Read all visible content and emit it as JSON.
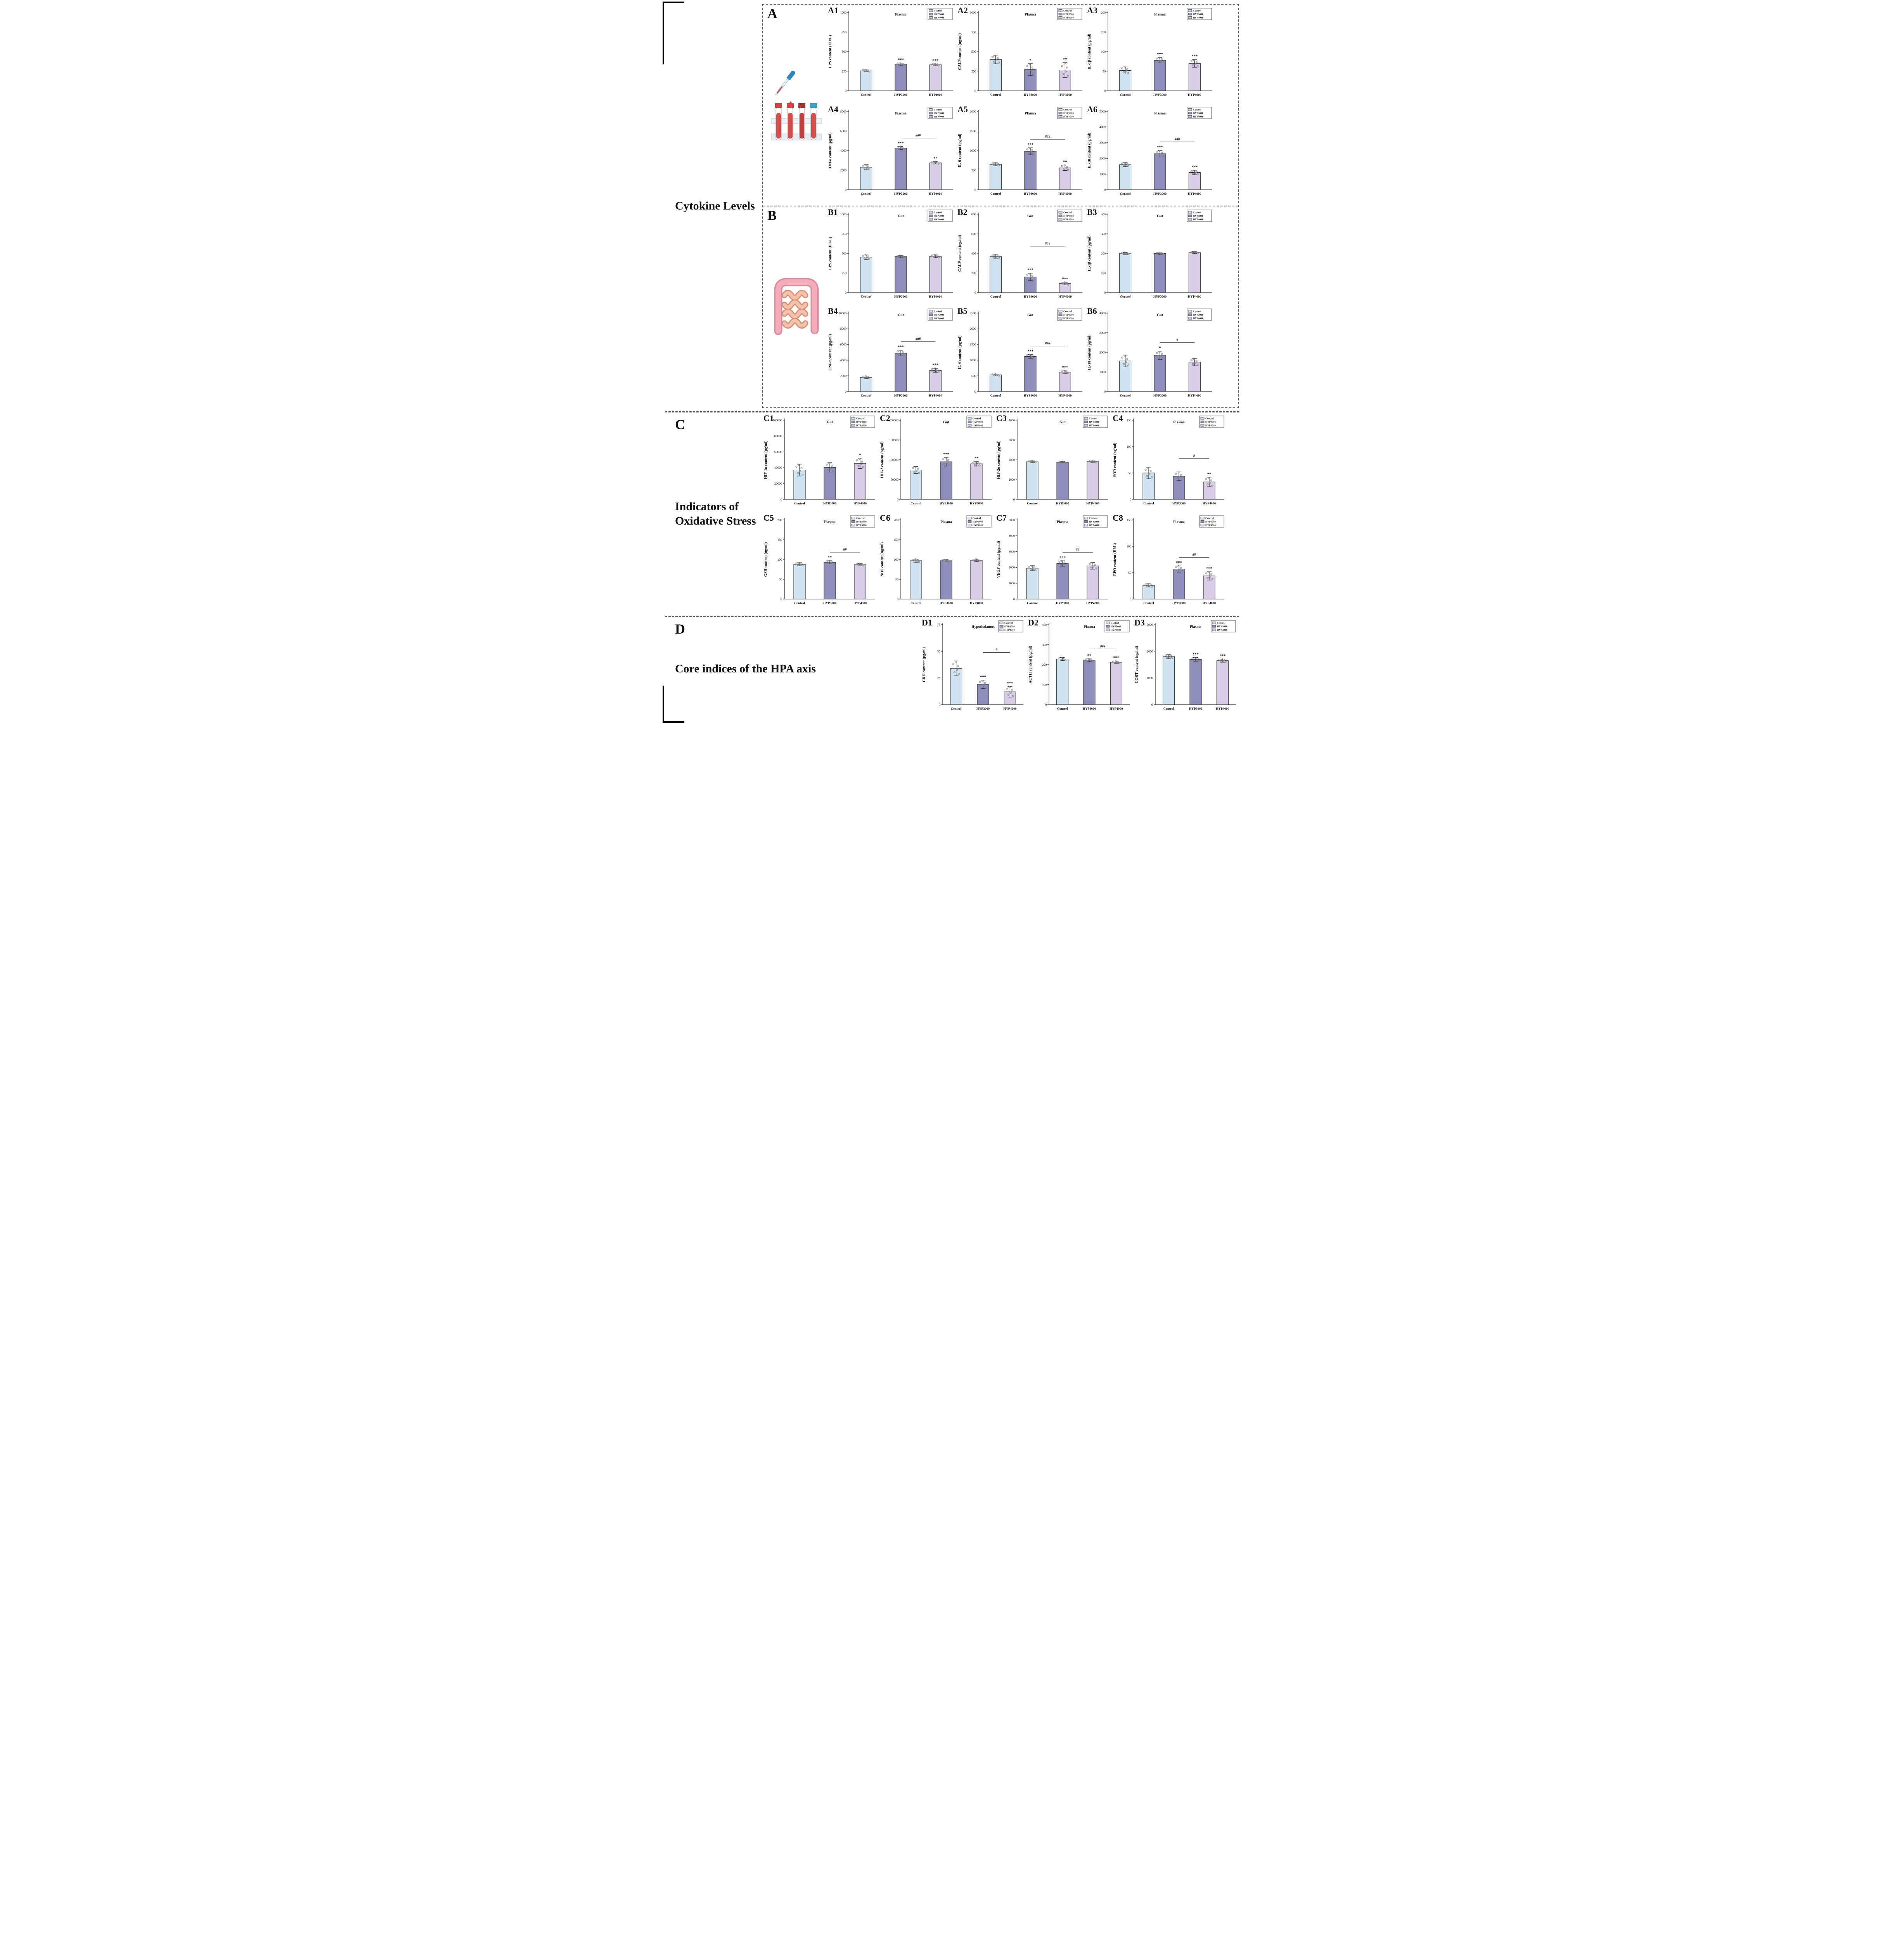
{
  "sections": {
    "cytokine_label": "Cytokine Levels",
    "A": {
      "letter": "A"
    },
    "B": {
      "letter": "B"
    },
    "C": {
      "letter": "C",
      "title1": "Indicators of",
      "title2": "Oxidative Stress"
    },
    "D": {
      "letter": "D",
      "title": "Core indices of the HPA axis"
    }
  },
  "legend": {
    "labels": [
      "Control",
      "HYP3000",
      "HYP4000"
    ]
  },
  "colors": {
    "series": [
      "#cfe3f1",
      "#8f8dbb",
      "#d9cce6"
    ],
    "bar_stroke": "#1a1a1a",
    "axis": "#111111",
    "scatter": "#9a9a9a"
  },
  "illustrations": {
    "A": "blood-test-tubes-illustration",
    "B": "intestine-illustration"
  },
  "chart_data": [
    {
      "panel": "A1",
      "section": "A",
      "type": "bar",
      "tissue": "Plasma",
      "ylabel": "LPS content (EU/L)",
      "ylim": [
        0,
        1000
      ],
      "yticks": [
        0,
        250,
        500,
        750,
        1000
      ],
      "categories": [
        "Control",
        "HYP3000",
        "HYP4000"
      ],
      "values": [
        255,
        340,
        332
      ],
      "errors": [
        12,
        14,
        12
      ],
      "sig": [
        "",
        "***",
        "***"
      ],
      "bracket": null
    },
    {
      "panel": "A2",
      "section": "A",
      "type": "bar",
      "tissue": "Plasma",
      "ylabel": "CALP content (ng/ml)",
      "ylim": [
        0,
        1000
      ],
      "yticks": [
        0,
        250,
        500,
        750,
        1000
      ],
      "categories": [
        "Control",
        "HYP3000",
        "HYP4000"
      ],
      "values": [
        400,
        272,
        265
      ],
      "errors": [
        55,
        75,
        95
      ],
      "sig": [
        "",
        "*",
        "**"
      ],
      "bracket": null
    },
    {
      "panel": "A3",
      "section": "A",
      "type": "bar",
      "tissue": "Plasma",
      "ylabel": "IL-1β content (pg/ml)",
      "ylim": [
        0,
        200
      ],
      "yticks": [
        0,
        50,
        100,
        150,
        200
      ],
      "categories": [
        "Control",
        "HYP3000",
        "HYP4000"
      ],
      "values": [
        52,
        78,
        70
      ],
      "errors": [
        9,
        7,
        10
      ],
      "sig": [
        "",
        "***",
        "***"
      ],
      "bracket": null
    },
    {
      "panel": "A4",
      "section": "A",
      "type": "bar",
      "tissue": "Plasma",
      "ylabel": "TNFα content (pg/ml)",
      "ylim": [
        0,
        8000
      ],
      "yticks": [
        0,
        2000,
        4000,
        6000,
        8000
      ],
      "categories": [
        "Control",
        "HYP3000",
        "HYP4000"
      ],
      "values": [
        2300,
        4250,
        2750
      ],
      "errors": [
        260,
        160,
        120
      ],
      "sig": [
        "",
        "***",
        "**"
      ],
      "bracket": {
        "from": 1,
        "to": 2,
        "label": "###"
      }
    },
    {
      "panel": "A5",
      "section": "A",
      "type": "bar",
      "tissue": "Plasma",
      "ylabel": "IL-6 content (pg/ml)",
      "ylim": [
        0,
        2000
      ],
      "yticks": [
        0,
        500,
        1000,
        1500,
        2000
      ],
      "categories": [
        "Control",
        "HYP3000",
        "HYP4000"
      ],
      "values": [
        650,
        980,
        560
      ],
      "errors": [
        40,
        90,
        70
      ],
      "sig": [
        "",
        "***",
        "**"
      ],
      "bracket": {
        "from": 1,
        "to": 2,
        "label": "###"
      }
    },
    {
      "panel": "A6",
      "section": "A",
      "type": "bar",
      "tissue": "Plasma",
      "ylabel": "IL-10 content (pg/ml)",
      "ylim": [
        0,
        5000
      ],
      "yticks": [
        0,
        1000,
        2000,
        3000,
        4000,
        5000
      ],
      "categories": [
        "Control",
        "HYP3000",
        "HYP4000"
      ],
      "values": [
        1600,
        2300,
        1100
      ],
      "errors": [
        130,
        210,
        140
      ],
      "sig": [
        "",
        "***",
        "***"
      ],
      "bracket": {
        "from": 1,
        "to": 2,
        "label": "###"
      }
    },
    {
      "panel": "B1",
      "section": "B",
      "type": "bar",
      "tissue": "Gut",
      "ylabel": "LPS content (EU/L)",
      "ylim": [
        0,
        1000
      ],
      "yticks": [
        0,
        250,
        500,
        750,
        1000
      ],
      "categories": [
        "Control",
        "HYP3000",
        "HYP4000"
      ],
      "values": [
        452,
        460,
        463
      ],
      "errors": [
        28,
        14,
        18
      ],
      "sig": [
        "",
        "",
        ""
      ],
      "bracket": null
    },
    {
      "panel": "B2",
      "section": "B",
      "type": "bar",
      "tissue": "Gut",
      "ylabel": "CALP content (ng/ml)",
      "ylim": [
        0,
        800
      ],
      "yticks": [
        0,
        200,
        400,
        600,
        800
      ],
      "categories": [
        "Control",
        "HYP3000",
        "HYP4000"
      ],
      "values": [
        368,
        160,
        92
      ],
      "errors": [
        18,
        38,
        14
      ],
      "sig": [
        "",
        "***",
        "***"
      ],
      "bracket": {
        "from": 1,
        "to": 2,
        "label": "###"
      }
    },
    {
      "panel": "B3",
      "section": "B",
      "type": "bar",
      "tissue": "Gut",
      "ylabel": "IL-1β content (pg/ml)",
      "ylim": [
        0,
        400
      ],
      "yticks": [
        0,
        100,
        200,
        300,
        400
      ],
      "categories": [
        "Control",
        "HYP3000",
        "HYP4000"
      ],
      "values": [
        200,
        199,
        204
      ],
      "errors": [
        5,
        4,
        5
      ],
      "sig": [
        "",
        "",
        ""
      ],
      "bracket": null
    },
    {
      "panel": "B4",
      "section": "B",
      "type": "bar",
      "tissue": "Gut",
      "ylabel": "TNFα content (pg/ml)",
      "ylim": [
        0,
        10000
      ],
      "yticks": [
        0,
        2000,
        4000,
        6000,
        8000,
        10000
      ],
      "categories": [
        "Control",
        "HYP3000",
        "HYP4000"
      ],
      "values": [
        1800,
        4900,
        2700
      ],
      "errors": [
        160,
        360,
        260
      ],
      "sig": [
        "",
        "***",
        "***"
      ],
      "bracket": {
        "from": 1,
        "to": 2,
        "label": "###"
      }
    },
    {
      "panel": "B5",
      "section": "B",
      "type": "bar",
      "tissue": "Gut",
      "ylabel": "IL-6 content (pg/ml)",
      "ylim": [
        0,
        2500
      ],
      "yticks": [
        0,
        500,
        1000,
        1500,
        2000,
        2500
      ],
      "categories": [
        "Control",
        "HYP3000",
        "HYP4000"
      ],
      "values": [
        530,
        1120,
        620
      ],
      "errors": [
        30,
        60,
        40
      ],
      "sig": [
        "",
        "***",
        "***"
      ],
      "bracket": {
        "from": 1,
        "to": 2,
        "label": "###"
      }
    },
    {
      "panel": "B6",
      "section": "B",
      "type": "bar",
      "tissue": "Gut",
      "ylabel": "IL-10 content (pg/ml)",
      "ylim": [
        0,
        4000
      ],
      "yticks": [
        0,
        1000,
        2000,
        3000,
        4000
      ],
      "categories": [
        "Control",
        "HYP3000",
        "HYP4000"
      ],
      "values": [
        1560,
        1850,
        1500
      ],
      "errors": [
        300,
        210,
        190
      ],
      "sig": [
        "",
        "*",
        ""
      ],
      "bracket": {
        "from": 1,
        "to": 2,
        "label": "#"
      }
    },
    {
      "panel": "C1",
      "section": "C",
      "type": "bar",
      "tissue": "Gut",
      "ylabel": "HIF-1α content (pg/ml)",
      "ylim": [
        0,
        100000
      ],
      "yticks": [
        0,
        20000,
        40000,
        60000,
        80000,
        100000
      ],
      "categories": [
        "Control",
        "HYP3000",
        "HYP4000"
      ],
      "values": [
        37000,
        40500,
        45500
      ],
      "errors": [
        7500,
        6000,
        6500
      ],
      "sig": [
        "",
        "",
        "*"
      ],
      "bracket": null
    },
    {
      "panel": "C2",
      "section": "C",
      "type": "bar",
      "tissue": "Gut",
      "ylabel": "HIF-2 content (pg/ml)",
      "ylim": [
        0,
        200000
      ],
      "yticks": [
        0,
        50000,
        100000,
        150000,
        200000
      ],
      "categories": [
        "Control",
        "HYP3000",
        "HYP4000"
      ],
      "values": [
        74000,
        95000,
        90000
      ],
      "errors": [
        9000,
        11000,
        6000
      ],
      "sig": [
        "",
        "***",
        "**"
      ],
      "bracket": null
    },
    {
      "panel": "C3",
      "section": "C",
      "type": "bar",
      "tissue": "Gut",
      "ylabel": "HIF-2α content (pg/ml)",
      "ylim": [
        0,
        4000
      ],
      "yticks": [
        0,
        1000,
        2000,
        3000,
        4000
      ],
      "categories": [
        "Control",
        "HYP3000",
        "HYP4000"
      ],
      "values": [
        1900,
        1880,
        1905
      ],
      "errors": [
        45,
        30,
        35
      ],
      "sig": [
        "",
        "",
        ""
      ],
      "bracket": null
    },
    {
      "panel": "C4",
      "section": "C",
      "type": "bar",
      "tissue": "Plasma",
      "ylabel": "SOD content (ng/ml)",
      "ylim": [
        0,
        150
      ],
      "yticks": [
        0,
        50,
        100,
        150
      ],
      "categories": [
        "Control",
        "HYP3000",
        "HYP4000"
      ],
      "values": [
        50,
        44,
        33
      ],
      "errors": [
        11,
        8,
        9
      ],
      "sig": [
        "",
        "",
        "**"
      ],
      "bracket": {
        "from": 1,
        "to": 2,
        "label": "#"
      }
    },
    {
      "panel": "C5",
      "section": "C",
      "type": "bar",
      "tissue": "Plasma",
      "ylabel": "GSH content (ng/ml)",
      "ylim": [
        0,
        200
      ],
      "yticks": [
        0,
        50,
        100,
        150,
        200
      ],
      "categories": [
        "Control",
        "HYP3000",
        "HYP4000"
      ],
      "values": [
        88,
        93,
        87
      ],
      "errors": [
        4,
        4,
        3
      ],
      "sig": [
        "",
        "**",
        ""
      ],
      "bracket": {
        "from": 1,
        "to": 2,
        "label": "##"
      }
    },
    {
      "panel": "C6",
      "section": "C",
      "type": "bar",
      "tissue": "Plasma",
      "ylabel": "NOS content (ng/ml)",
      "ylim": [
        0,
        200
      ],
      "yticks": [
        0,
        50,
        100,
        150,
        200
      ],
      "categories": [
        "Control",
        "HYP3000",
        "HYP4000"
      ],
      "values": [
        97,
        97,
        98
      ],
      "errors": [
        4,
        3,
        3
      ],
      "sig": [
        "",
        "",
        ""
      ],
      "bracket": null
    },
    {
      "panel": "C7",
      "section": "C",
      "type": "bar",
      "tissue": "Plasma",
      "ylabel": "VEGF content (pg/ml)",
      "ylim": [
        0,
        5000
      ],
      "yticks": [
        0,
        1000,
        2000,
        3000,
        4000,
        5000
      ],
      "categories": [
        "Control",
        "HYP3000",
        "HYP4000"
      ],
      "values": [
        1950,
        2250,
        2100
      ],
      "errors": [
        160,
        170,
        210
      ],
      "sig": [
        "",
        "***",
        ""
      ],
      "bracket": {
        "from": 1,
        "to": 2,
        "label": "##"
      }
    },
    {
      "panel": "C8",
      "section": "C",
      "type": "bar",
      "tissue": "Plasma",
      "ylabel": "EPO content (IU/L)",
      "ylim": [
        0,
        150
      ],
      "yticks": [
        0,
        50,
        100,
        150
      ],
      "categories": [
        "Control",
        "HYP3000",
        "HYP4000"
      ],
      "values": [
        26,
        57,
        44
      ],
      "errors": [
        3,
        6,
        8
      ],
      "sig": [
        "",
        "***",
        "***"
      ],
      "bracket": {
        "from": 1,
        "to": 2,
        "label": "##"
      }
    },
    {
      "panel": "D1",
      "section": "D",
      "type": "bar",
      "tissue": "Hypothalamus",
      "ylabel": "CRH content (pg/ml)",
      "ylim": [
        0,
        75
      ],
      "yticks": [
        0,
        25,
        50,
        75
      ],
      "categories": [
        "Control",
        "HYP3000",
        "HYP4000"
      ],
      "values": [
        34,
        19,
        12
      ],
      "errors": [
        7,
        4,
        5
      ],
      "sig": [
        "",
        "***",
        "***"
      ],
      "bracket": {
        "from": 1,
        "to": 2,
        "label": "#"
      }
    },
    {
      "panel": "D2",
      "section": "D",
      "type": "bar",
      "tissue": "Plasma",
      "ylabel": "ACTH content (pg/ml)",
      "ylim": [
        0,
        400
      ],
      "yticks": [
        0,
        100,
        200,
        300,
        400
      ],
      "categories": [
        "Control",
        "HYP3000",
        "HYP4000"
      ],
      "values": [
        228,
        222,
        212
      ],
      "errors": [
        8,
        7,
        6
      ],
      "sig": [
        "",
        "**",
        "***"
      ],
      "bracket": {
        "from": 1,
        "to": 2,
        "label": "###"
      }
    },
    {
      "panel": "D3",
      "section": "D",
      "type": "bar",
      "tissue": "Plasma",
      "ylabel": "CORT content (ng/ml)",
      "ylim": [
        0,
        3000
      ],
      "yticks": [
        0,
        1000,
        2000,
        3000
      ],
      "categories": [
        "Control",
        "HYP3000",
        "HYP4000"
      ],
      "values": [
        1800,
        1700,
        1650
      ],
      "errors": [
        80,
        70,
        60
      ],
      "sig": [
        "",
        "***",
        "***"
      ],
      "bracket": null
    }
  ]
}
